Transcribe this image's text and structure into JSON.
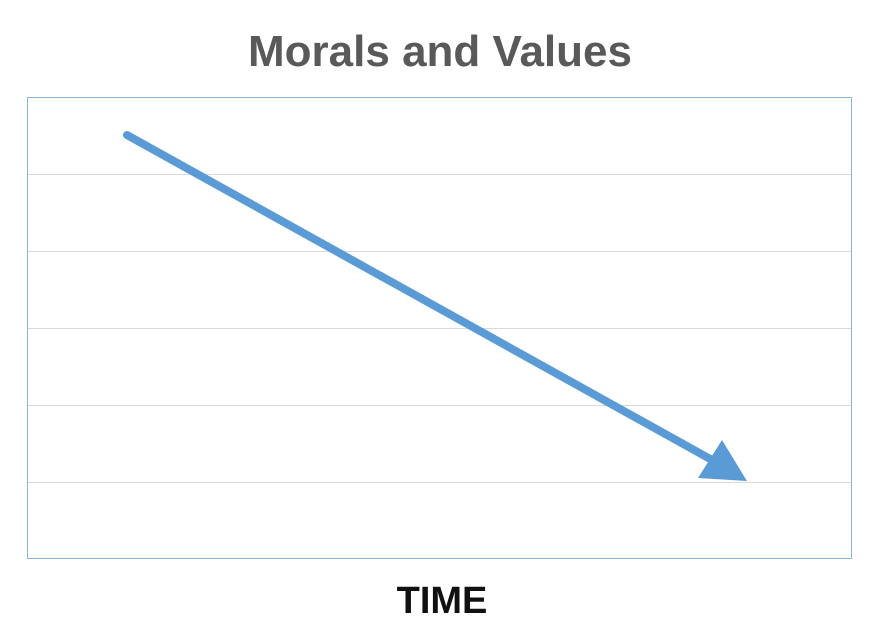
{
  "title": "Morals and Values",
  "x_axis_label": "TIME"
}
